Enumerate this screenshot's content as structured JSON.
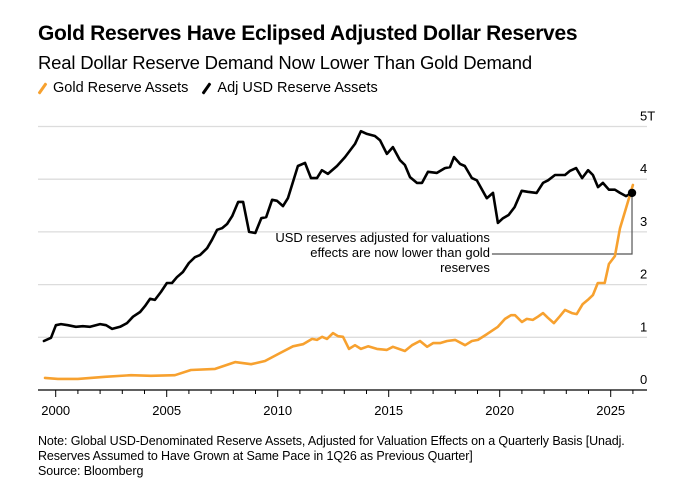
{
  "header": {
    "title": "Gold Reserves Have Eclipsed Adjusted Dollar Reserves",
    "subtitle": "Real Dollar Reserve Demand Now Lower Than Gold Demand"
  },
  "footer": {
    "note_line1": "Note: Global USD-Denominated Reserve Assets, Adjusted for Valuation Effects on a Quarterly Basis [Unadj.",
    "note_line2": "Reserves Assumed to Have Grown at Same Pace in 1Q26 as Previous Quarter]",
    "source": "Source: Bloomberg"
  },
  "chart_data": {
    "type": "line",
    "title": "Gold Reserves Have Eclipsed Adjusted Dollar Reserves",
    "subtitle": "Real Dollar Reserve Demand Now Lower Than Gold Demand",
    "xlabel": "",
    "ylabel": "",
    "xlim": [
      1999.3,
      2026.65
    ],
    "ylim": [
      0,
      5
    ],
    "x_ticks": [
      2000,
      2005,
      2010,
      2015,
      2020,
      2025
    ],
    "x_minor_ticks_per_year": true,
    "y_ticks": [
      0,
      1,
      2,
      3,
      4,
      5
    ],
    "y_tick_labels": [
      "0",
      "1",
      "2",
      "3",
      "4",
      "5T"
    ],
    "y_axis_position": "right",
    "grid": "horizontal",
    "legend_position": "top-left",
    "series": [
      {
        "name": "Gold Reserve Assets",
        "color": "#f7a12f",
        "points": [
          [
            1999.52,
            0.23
          ],
          [
            2000.1,
            0.21
          ],
          [
            2001.0,
            0.21
          ],
          [
            2002.22,
            0.25
          ],
          [
            2003.39,
            0.28
          ],
          [
            2004.29,
            0.27
          ],
          [
            2005.37,
            0.28
          ],
          [
            2006.09,
            0.38
          ],
          [
            2007.18,
            0.4
          ],
          [
            2008.08,
            0.53
          ],
          [
            2008.8,
            0.49
          ],
          [
            2009.43,
            0.55
          ],
          [
            2010.1,
            0.7
          ],
          [
            2010.69,
            0.83
          ],
          [
            2011.14,
            0.87
          ],
          [
            2011.55,
            0.97
          ],
          [
            2011.77,
            0.95
          ],
          [
            2012.0,
            1.01
          ],
          [
            2012.22,
            0.97
          ],
          [
            2012.49,
            1.08
          ],
          [
            2012.72,
            1.02
          ],
          [
            2012.94,
            1.01
          ],
          [
            2013.21,
            0.78
          ],
          [
            2013.48,
            0.85
          ],
          [
            2013.75,
            0.78
          ],
          [
            2014.07,
            0.83
          ],
          [
            2014.47,
            0.78
          ],
          [
            2014.92,
            0.76
          ],
          [
            2015.19,
            0.82
          ],
          [
            2015.73,
            0.74
          ],
          [
            2016.05,
            0.85
          ],
          [
            2016.41,
            0.93
          ],
          [
            2016.73,
            0.82
          ],
          [
            2017.0,
            0.89
          ],
          [
            2017.31,
            0.89
          ],
          [
            2017.63,
            0.93
          ],
          [
            2017.99,
            0.95
          ],
          [
            2018.44,
            0.85
          ],
          [
            2018.75,
            0.93
          ],
          [
            2019.02,
            0.95
          ],
          [
            2019.43,
            1.06
          ],
          [
            2019.92,
            1.2
          ],
          [
            2020.24,
            1.35
          ],
          [
            2020.51,
            1.42
          ],
          [
            2020.69,
            1.42
          ],
          [
            2021.0,
            1.29
          ],
          [
            2021.22,
            1.35
          ],
          [
            2021.49,
            1.33
          ],
          [
            2021.72,
            1.39
          ],
          [
            2021.95,
            1.46
          ],
          [
            2022.17,
            1.37
          ],
          [
            2022.44,
            1.27
          ],
          [
            2022.71,
            1.4
          ],
          [
            2022.94,
            1.52
          ],
          [
            2023.25,
            1.46
          ],
          [
            2023.47,
            1.44
          ],
          [
            2023.74,
            1.63
          ],
          [
            2023.97,
            1.71
          ],
          [
            2024.2,
            1.8
          ],
          [
            2024.42,
            2.03
          ],
          [
            2024.73,
            2.03
          ],
          [
            2024.92,
            2.39
          ],
          [
            2025.19,
            2.54
          ],
          [
            2025.42,
            3.07
          ],
          [
            2025.69,
            3.45
          ],
          [
            2026.0,
            3.89
          ]
        ]
      },
      {
        "name": "Adj USD Reserve Assets",
        "color": "#000000",
        "points": [
          [
            1999.47,
            0.93
          ],
          [
            1999.79,
            0.99
          ],
          [
            2000.01,
            1.23
          ],
          [
            2000.24,
            1.25
          ],
          [
            2000.55,
            1.23
          ],
          [
            2000.91,
            1.2
          ],
          [
            2001.22,
            1.21
          ],
          [
            2001.55,
            1.2
          ],
          [
            2002.0,
            1.25
          ],
          [
            2002.27,
            1.23
          ],
          [
            2002.54,
            1.16
          ],
          [
            2002.9,
            1.2
          ],
          [
            2003.21,
            1.27
          ],
          [
            2003.48,
            1.39
          ],
          [
            2003.8,
            1.48
          ],
          [
            2004.02,
            1.59
          ],
          [
            2004.25,
            1.73
          ],
          [
            2004.47,
            1.71
          ],
          [
            2004.74,
            1.86
          ],
          [
            2005.01,
            2.03
          ],
          [
            2005.24,
            2.03
          ],
          [
            2005.46,
            2.14
          ],
          [
            2005.73,
            2.24
          ],
          [
            2006.0,
            2.41
          ],
          [
            2006.27,
            2.52
          ],
          [
            2006.5,
            2.56
          ],
          [
            2006.82,
            2.69
          ],
          [
            2007.04,
            2.85
          ],
          [
            2007.27,
            3.04
          ],
          [
            2007.49,
            3.07
          ],
          [
            2007.72,
            3.15
          ],
          [
            2007.95,
            3.3
          ],
          [
            2008.22,
            3.57
          ],
          [
            2008.44,
            3.57
          ],
          [
            2008.71,
            3.0
          ],
          [
            2008.99,
            2.98
          ],
          [
            2009.26,
            3.26
          ],
          [
            2009.48,
            3.28
          ],
          [
            2009.75,
            3.61
          ],
          [
            2009.97,
            3.59
          ],
          [
            2010.24,
            3.49
          ],
          [
            2010.46,
            3.64
          ],
          [
            2010.91,
            4.25
          ],
          [
            2011.23,
            4.31
          ],
          [
            2011.5,
            4.02
          ],
          [
            2011.77,
            4.02
          ],
          [
            2011.99,
            4.17
          ],
          [
            2012.26,
            4.1
          ],
          [
            2012.67,
            4.25
          ],
          [
            2013.03,
            4.42
          ],
          [
            2013.48,
            4.67
          ],
          [
            2013.75,
            4.91
          ],
          [
            2014.02,
            4.86
          ],
          [
            2014.38,
            4.82
          ],
          [
            2014.61,
            4.74
          ],
          [
            2014.92,
            4.48
          ],
          [
            2015.19,
            4.61
          ],
          [
            2015.51,
            4.36
          ],
          [
            2015.73,
            4.27
          ],
          [
            2015.96,
            4.04
          ],
          [
            2016.27,
            3.93
          ],
          [
            2016.5,
            3.93
          ],
          [
            2016.77,
            4.14
          ],
          [
            2017.17,
            4.12
          ],
          [
            2017.53,
            4.21
          ],
          [
            2017.76,
            4.23
          ],
          [
            2017.94,
            4.42
          ],
          [
            2018.21,
            4.29
          ],
          [
            2018.43,
            4.25
          ],
          [
            2018.75,
            4.02
          ],
          [
            2018.97,
            3.98
          ],
          [
            2019.42,
            3.64
          ],
          [
            2019.7,
            3.74
          ],
          [
            2019.92,
            3.17
          ],
          [
            2020.15,
            3.26
          ],
          [
            2020.4,
            3.32
          ],
          [
            2020.67,
            3.47
          ],
          [
            2020.99,
            3.78
          ],
          [
            2021.26,
            3.76
          ],
          [
            2021.66,
            3.74
          ],
          [
            2021.95,
            3.93
          ],
          [
            2022.18,
            3.98
          ],
          [
            2022.49,
            4.08
          ],
          [
            2022.94,
            4.08
          ],
          [
            2023.17,
            4.16
          ],
          [
            2023.44,
            4.21
          ],
          [
            2023.71,
            4.02
          ],
          [
            2023.98,
            4.17
          ],
          [
            2024.2,
            4.08
          ],
          [
            2024.43,
            3.85
          ],
          [
            2024.65,
            3.93
          ],
          [
            2024.92,
            3.8
          ],
          [
            2025.19,
            3.8
          ],
          [
            2025.42,
            3.74
          ],
          [
            2025.69,
            3.68
          ],
          [
            2025.96,
            3.74
          ]
        ]
      }
    ],
    "end_marker": {
      "series": "Adj USD Reserve Assets",
      "x": 2025.96,
      "y": 3.74
    },
    "annotation": {
      "lines": [
        "USD reserves adjusted for valuations",
        "effects are now lower than gold",
        "reserves"
      ],
      "anchor": {
        "x": 2025.96,
        "y": 3.74
      },
      "leader_y": 2.58,
      "leader_x_start": 2019.65
    }
  }
}
